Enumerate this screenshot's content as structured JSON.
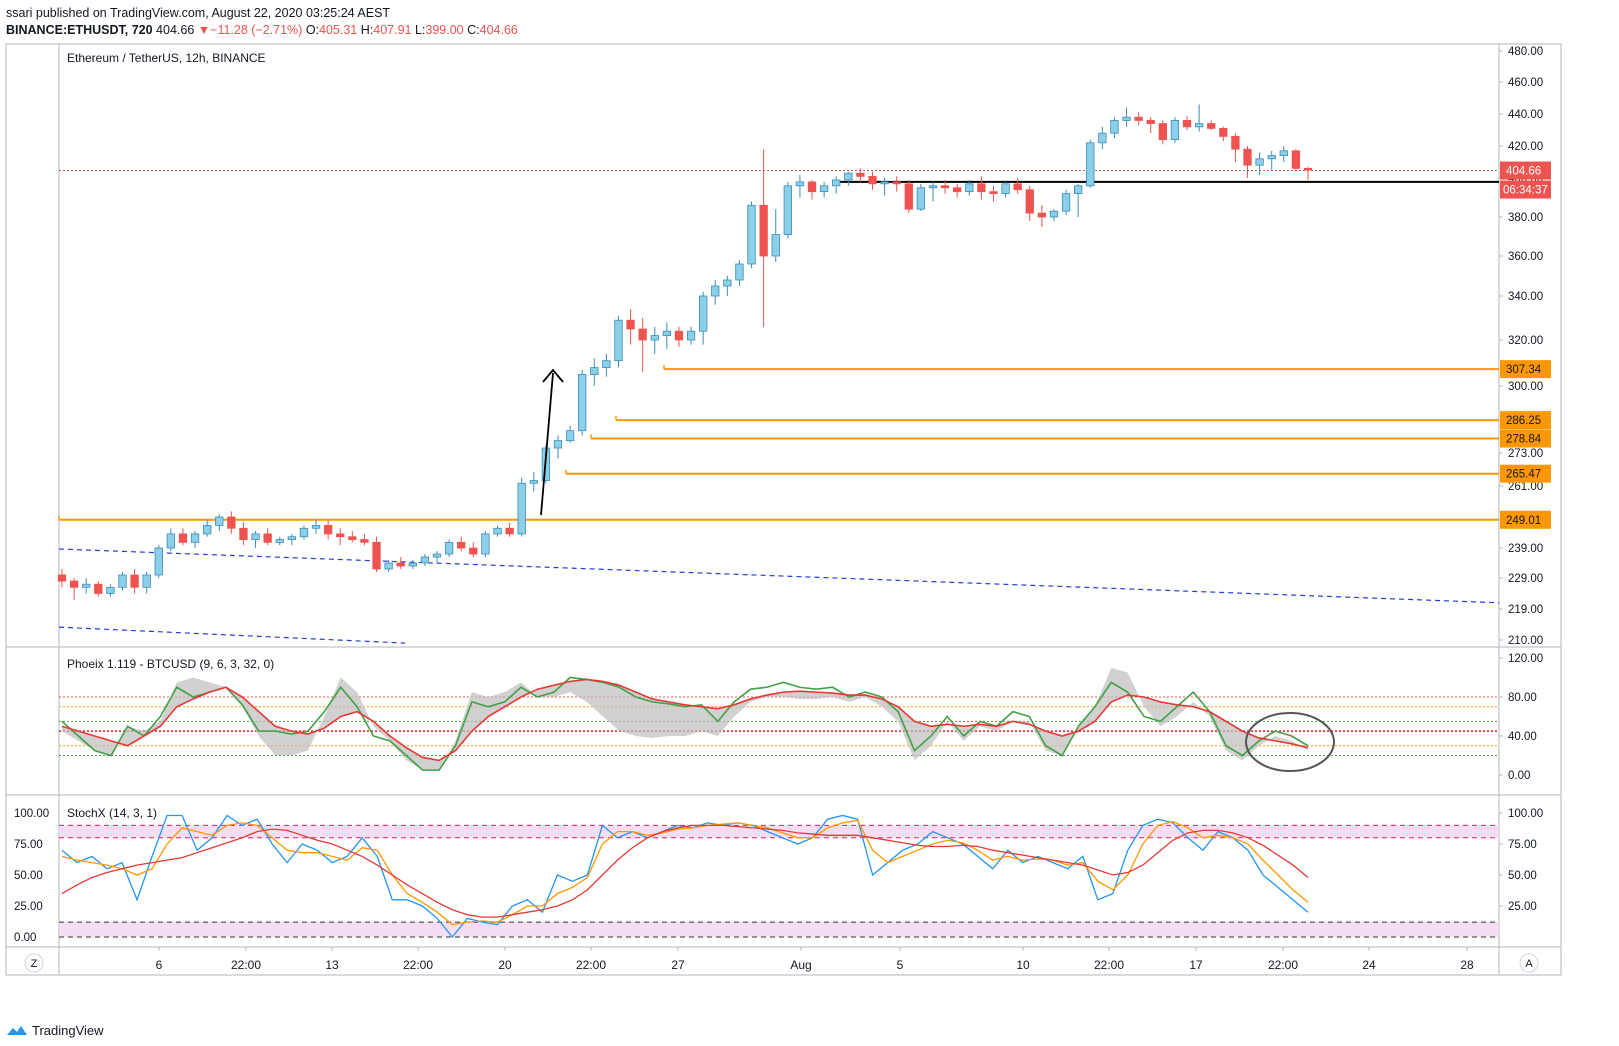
{
  "header": {
    "published": "ssari published on TradingView.com, August 22, 2020 03:25:24 AEST",
    "symbol": "BINANCE:ETHUSDT, 720",
    "last": "404.66",
    "change_arrow": "▼",
    "change": "−11.28 (−2.71%)",
    "o_label": "O:",
    "o": "405.31",
    "h_label": "H:",
    "h": "407.91",
    "l_label": "L:",
    "l": "399.00",
    "c_label": "C:",
    "c": "404.66"
  },
  "footer": {
    "brand": "TradingView"
  },
  "buttons": {
    "left": "Z",
    "right": "A"
  },
  "colors": {
    "up": "#8ccfe8",
    "up_border": "#3a8db8",
    "down": "#ef5350",
    "level": "#ff9800",
    "trend": "#2a3bd6"
  },
  "chart_data": [
    {
      "type": "candlestick",
      "title": "Ethereum / TetherUS, 12h, BINANCE",
      "y_ticks": [
        "480.00",
        "460.00",
        "440.00",
        "420.00",
        "400.00",
        "380.00",
        "360.00",
        "340.00",
        "320.00",
        "300.00",
        "273.00",
        "261.00",
        "239.00",
        "229.00",
        "219.00",
        "210.00"
      ],
      "x_ticks": [
        "6",
        "22:00",
        "13",
        "22:00",
        "20",
        "22:00",
        "27",
        "Aug",
        "5",
        "10",
        "22:00",
        "17",
        "22:00",
        "24",
        "28"
      ],
      "last_price_label": "404.66",
      "countdown_label": "06:34:37",
      "horizontal_levels": [
        {
          "price": 307.34,
          "label": "307.34"
        },
        {
          "price": 286.25,
          "label": "286.25"
        },
        {
          "price": 278.84,
          "label": "278.84"
        },
        {
          "price": 265.47,
          "label": "265.47"
        },
        {
          "price": 249.01,
          "label": "249.01"
        }
      ],
      "black_support_level": 398.0,
      "candles": [
        [
          230,
          232,
          226,
          228
        ],
        [
          228,
          229,
          222,
          226
        ],
        [
          226,
          229,
          224,
          227
        ],
        [
          227,
          228,
          223,
          224
        ],
        [
          224,
          227,
          223,
          226
        ],
        [
          226,
          231,
          225,
          230
        ],
        [
          230,
          232,
          224,
          226
        ],
        [
          226,
          231,
          224,
          230
        ],
        [
          230,
          240,
          229,
          239
        ],
        [
          239,
          246,
          238,
          244
        ],
        [
          244,
          246,
          240,
          241
        ],
        [
          241,
          245,
          239,
          244
        ],
        [
          244,
          249,
          243,
          247
        ],
        [
          247,
          251,
          245,
          250
        ],
        [
          250,
          252,
          244,
          246
        ],
        [
          246,
          248,
          240,
          242
        ],
        [
          242,
          245,
          239,
          244
        ],
        [
          244,
          246,
          240,
          241
        ],
        [
          241,
          243,
          240,
          242
        ],
        [
          242,
          244,
          240,
          243
        ],
        [
          243,
          247,
          242,
          246
        ],
        [
          246,
          249,
          244,
          247
        ],
        [
          247,
          249,
          242,
          244
        ],
        [
          244,
          246,
          240,
          243
        ],
        [
          243,
          245,
          241,
          242
        ],
        [
          242,
          244,
          240,
          241
        ],
        [
          241,
          243,
          231,
          232
        ],
        [
          232,
          235,
          231,
          234
        ],
        [
          234,
          236,
          232,
          233
        ],
        [
          233,
          235,
          232,
          234
        ],
        [
          234,
          237,
          233,
          236
        ],
        [
          236,
          238,
          234,
          237
        ],
        [
          237,
          242,
          236,
          241
        ],
        [
          241,
          243,
          238,
          239
        ],
        [
          239,
          241,
          236,
          237
        ],
        [
          237,
          245,
          236,
          244
        ],
        [
          244,
          247,
          243,
          246
        ],
        [
          246,
          248,
          243,
          244
        ],
        [
          244,
          264,
          243,
          262
        ],
        [
          262,
          266,
          259,
          263
        ],
        [
          263,
          276,
          262,
          275
        ],
        [
          275,
          280,
          271,
          278
        ],
        [
          278,
          284,
          277,
          282
        ],
        [
          282,
          307,
          280,
          305
        ],
        [
          305,
          312,
          300,
          308
        ],
        [
          308,
          314,
          304,
          311
        ],
        [
          311,
          331,
          308,
          329
        ],
        [
          329,
          334,
          318,
          325
        ],
        [
          325,
          330,
          306,
          320
        ],
        [
          320,
          326,
          314,
          322
        ],
        [
          322,
          328,
          316,
          324
        ],
        [
          324,
          326,
          317,
          320
        ],
        [
          320,
          326,
          318,
          324
        ],
        [
          324,
          342,
          318,
          340
        ],
        [
          340,
          348,
          336,
          345
        ],
        [
          345,
          350,
          340,
          348
        ],
        [
          348,
          358,
          345,
          356
        ],
        [
          356,
          388,
          354,
          386
        ],
        [
          386,
          418,
          326,
          360
        ],
        [
          360,
          384,
          357,
          371
        ],
        [
          371,
          398,
          369,
          396
        ],
        [
          396,
          402,
          390,
          398
        ],
        [
          398,
          399,
          389,
          393
        ],
        [
          393,
          398,
          390,
          396
        ],
        [
          396,
          401,
          392,
          399
        ],
        [
          399,
          404,
          396,
          403
        ],
        [
          403,
          406,
          398,
          401
        ],
        [
          401,
          404,
          394,
          397
        ],
        [
          397,
          400,
          391,
          398
        ],
        [
          398,
          401,
          393,
          397
        ],
        [
          397,
          399,
          382,
          384
        ],
        [
          384,
          397,
          383,
          395
        ],
        [
          395,
          398,
          388,
          396
        ],
        [
          396,
          399,
          392,
          395
        ],
        [
          395,
          397,
          390,
          393
        ],
        [
          393,
          399,
          391,
          397
        ],
        [
          397,
          401,
          389,
          393
        ],
        [
          393,
          396,
          388,
          392
        ],
        [
          392,
          398,
          390,
          397
        ],
        [
          397,
          400,
          392,
          394
        ],
        [
          394,
          396,
          378,
          382
        ],
        [
          382,
          386,
          375,
          380
        ],
        [
          380,
          384,
          378,
          383
        ],
        [
          383,
          394,
          381,
          392
        ],
        [
          392,
          397,
          380,
          396
        ],
        [
          396,
          424,
          395,
          422
        ],
        [
          422,
          432,
          418,
          428
        ],
        [
          428,
          438,
          425,
          436
        ],
        [
          436,
          444,
          432,
          438
        ],
        [
          438,
          441,
          433,
          436
        ],
        [
          436,
          438,
          428,
          434
        ],
        [
          434,
          436,
          421,
          424
        ],
        [
          424,
          438,
          422,
          436
        ],
        [
          436,
          439,
          430,
          432
        ],
        [
          432,
          446,
          429,
          434
        ],
        [
          434,
          436,
          430,
          431
        ],
        [
          431,
          432,
          423,
          426
        ],
        [
          426,
          428,
          410,
          418
        ],
        [
          418,
          420,
          400,
          408
        ],
        [
          408,
          416,
          402,
          412
        ],
        [
          412,
          417,
          405,
          414
        ],
        [
          414,
          420,
          410,
          417
        ],
        [
          417,
          418,
          404,
          406
        ],
        [
          406,
          407,
          399,
          405
        ]
      ],
      "trendlines": [
        {
          "from": [
            "start",
            239
          ],
          "to": [
            "end",
            221
          ]
        },
        {
          "from": [
            "start",
            212
          ],
          "to": [
            "mid",
            209
          ]
        }
      ]
    },
    {
      "type": "line",
      "title": "Phoeix 1.119 - BTCUSD (9, 6, 3, 32, 0)",
      "y_ticks": [
        "120.00",
        "80.00",
        "40.00",
        "0.00"
      ],
      "levels": [
        80,
        70,
        55,
        45,
        30,
        20
      ],
      "series": [
        {
          "name": "",
          "values": [
            55,
            40,
            25,
            20,
            50,
            40,
            60,
            90,
            80,
            85,
            90,
            72,
            45,
            45,
            42,
            45,
            65,
            90,
            70,
            40,
            35,
            20,
            5,
            5,
            30,
            75,
            70,
            75,
            90,
            80,
            85,
            100,
            98,
            95,
            90,
            80,
            75,
            73,
            70,
            72,
            55,
            75,
            88,
            90,
            95,
            90,
            88,
            90,
            80,
            85,
            80,
            65,
            25,
            40,
            60,
            40,
            55,
            50,
            65,
            60,
            30,
            20,
            50,
            70,
            95,
            85,
            60,
            55,
            70,
            85,
            65,
            30,
            20,
            35,
            45,
            40,
            30
          ]
        },
        {
          "name": "",
          "values": [
            50,
            45,
            40,
            35,
            30,
            40,
            50,
            70,
            78,
            85,
            90,
            80,
            65,
            50,
            45,
            42,
            48,
            60,
            65,
            55,
            40,
            28,
            18,
            15,
            25,
            45,
            60,
            70,
            80,
            88,
            92,
            96,
            98,
            96,
            92,
            85,
            78,
            75,
            72,
            70,
            68,
            72,
            78,
            82,
            85,
            86,
            85,
            84,
            82,
            82,
            78,
            70,
            55,
            50,
            52,
            50,
            52,
            50,
            55,
            52,
            45,
            40,
            45,
            55,
            75,
            82,
            80,
            75,
            72,
            70,
            65,
            55,
            45,
            38,
            35,
            32,
            28
          ]
        }
      ],
      "band": [
        45,
        35,
        25,
        20,
        50,
        45,
        55,
        95,
        100,
        95,
        90,
        70,
        40,
        20,
        20,
        25,
        60,
        100,
        85,
        50,
        35,
        15,
        5,
        5,
        35,
        85,
        80,
        85,
        95,
        80,
        80,
        85,
        75,
        60,
        45,
        40,
        38,
        40,
        40,
        45,
        40,
        60,
        75,
        80,
        80,
        78,
        78,
        80,
        75,
        80,
        70,
        55,
        15,
        30,
        55,
        35,
        50,
        45,
        55,
        55,
        25,
        20,
        50,
        70,
        110,
        105,
        70,
        50,
        60,
        75,
        60,
        25,
        15,
        30,
        40,
        35,
        25
      ]
    },
    {
      "type": "line",
      "title": "StochX (14, 3, 1)",
      "y_ticks_left": [
        "100.00",
        "75.00",
        "50.00",
        "25.00",
        "0.00"
      ],
      "y_ticks_right": [
        "100.00",
        "75.00",
        "50.00",
        "25.00"
      ],
      "bands": [
        [
          80,
          90
        ],
        [
          0,
          12
        ]
      ],
      "series": [
        {
          "name": "",
          "values": [
            70,
            60,
            65,
            55,
            60,
            30,
            65,
            98,
            98,
            70,
            80,
            98,
            90,
            95,
            75,
            60,
            75,
            70,
            60,
            65,
            80,
            65,
            30,
            30,
            25,
            15,
            0,
            15,
            12,
            10,
            25,
            30,
            20,
            50,
            45,
            50,
            90,
            80,
            85,
            80,
            85,
            90,
            88,
            92,
            90,
            92,
            90,
            85,
            80,
            75,
            80,
            95,
            98,
            95,
            50,
            60,
            70,
            75,
            85,
            80,
            75,
            65,
            55,
            70,
            60,
            65,
            60,
            55,
            65,
            30,
            35,
            70,
            90,
            95,
            92,
            80,
            70,
            85,
            80,
            70,
            50,
            40,
            30,
            20
          ]
        },
        {
          "name": "",
          "values": [
            65,
            62,
            60,
            58,
            55,
            50,
            55,
            75,
            88,
            85,
            82,
            90,
            92,
            90,
            80,
            70,
            68,
            68,
            65,
            62,
            72,
            70,
            50,
            35,
            28,
            20,
            10,
            12,
            13,
            12,
            18,
            25,
            25,
            35,
            40,
            48,
            75,
            85,
            85,
            82,
            84,
            87,
            88,
            90,
            91,
            92,
            90,
            88,
            84,
            80,
            80,
            88,
            92,
            94,
            70,
            60,
            65,
            70,
            75,
            78,
            76,
            70,
            62,
            65,
            62,
            63,
            62,
            58,
            60,
            45,
            38,
            50,
            75,
            90,
            93,
            88,
            80,
            82,
            80,
            75,
            62,
            50,
            38,
            28
          ]
        },
        {
          "name": "",
          "values": [
            35,
            42,
            48,
            52,
            55,
            58,
            60,
            62,
            64,
            68,
            72,
            76,
            80,
            85,
            87,
            86,
            82,
            78,
            75,
            70,
            65,
            58,
            50,
            42,
            35,
            28,
            22,
            18,
            16,
            16,
            18,
            20,
            22,
            25,
            30,
            38,
            50,
            62,
            72,
            80,
            85,
            88,
            90,
            90,
            90,
            89,
            88,
            87,
            86,
            84,
            83,
            82,
            82,
            82,
            80,
            78,
            76,
            74,
            73,
            73,
            74,
            73,
            70,
            68,
            66,
            64,
            62,
            60,
            58,
            54,
            50,
            52,
            58,
            68,
            78,
            84,
            86,
            86,
            84,
            80,
            74,
            66,
            58,
            48
          ]
        }
      ]
    }
  ]
}
